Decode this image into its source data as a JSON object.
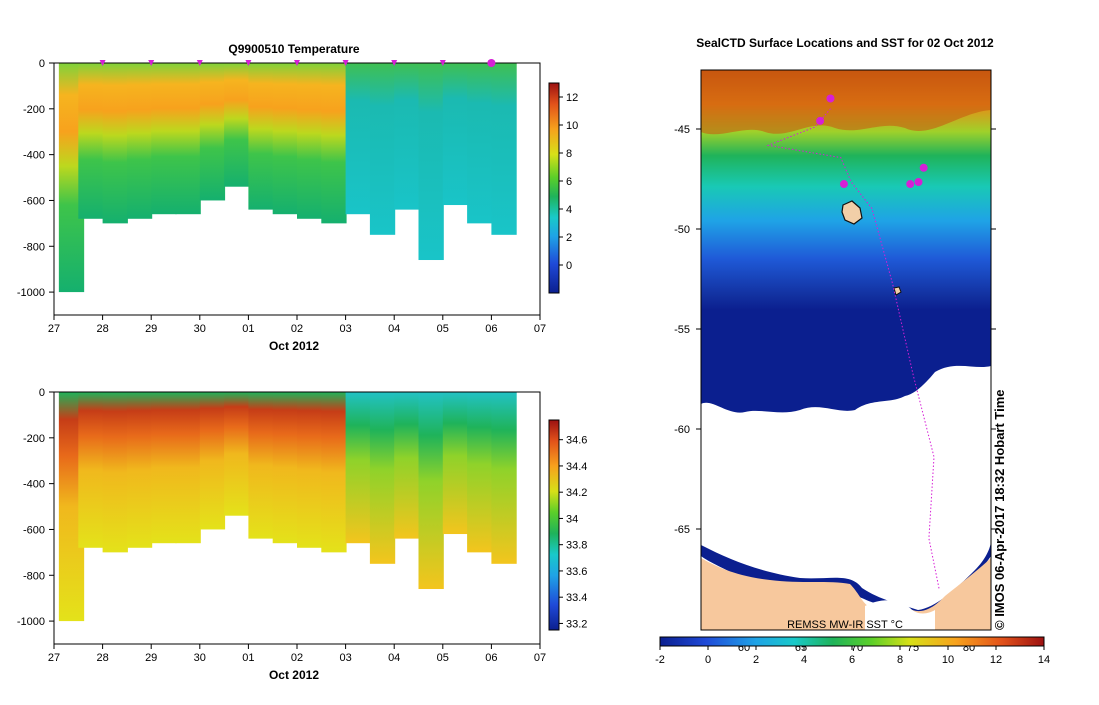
{
  "charts": {
    "temperature": {
      "title": "Q9900510  Temperature",
      "xlabel": "Oct 2012",
      "x_ticks": [
        "27",
        "28",
        "29",
        "30",
        "01",
        "02",
        "03",
        "04",
        "05",
        "06",
        "07"
      ],
      "y_ticks": [
        "0",
        "-200",
        "-400",
        "-600",
        "-800",
        "-1000"
      ],
      "colorbar_ticks": [
        "12",
        "10",
        "8",
        "6",
        "4",
        "2",
        "0"
      ]
    },
    "salinity": {
      "xlabel": "Oct 2012",
      "x_ticks": [
        "27",
        "28",
        "29",
        "30",
        "01",
        "02",
        "03",
        "04",
        "05",
        "06",
        "07"
      ],
      "y_ticks": [
        "0",
        "-200",
        "-400",
        "-600",
        "-800",
        "-1000"
      ],
      "colorbar_ticks": [
        "34.6",
        "34.4",
        "34.2",
        "34",
        "33.8",
        "33.6",
        "33.4",
        "33.2"
      ]
    },
    "map": {
      "title": "SealCTD Surface Locations and SST for 02 Oct 2012",
      "lat_ticks": [
        "-45",
        "-50",
        "-55",
        "-60",
        "-65"
      ],
      "lon_ticks": [
        "60",
        "65",
        "70",
        "75",
        "80"
      ],
      "source_label": "REMSS MW-IR SST °C",
      "timestamp": "© IMOS 06-Apr-2017 18:32 Hobart Time",
      "colorbar_ticks": [
        "-2",
        "0",
        "2",
        "4",
        "6",
        "8",
        "10",
        "12",
        "14"
      ]
    }
  },
  "chart_data": [
    {
      "type": "heatmap",
      "title": "Q9900510  Temperature",
      "xlabel": "Oct 2012",
      "ylabel": "",
      "x_range": [
        "27 Sep 2012",
        "07 Oct 2012"
      ],
      "ylim": [
        -1100,
        0
      ],
      "colorbar_range": [
        -2,
        13
      ],
      "colorbar_ticks": [
        12,
        10,
        8,
        6,
        4,
        2,
        0
      ],
      "surface_markers_days": [
        28,
        29,
        30,
        1,
        2,
        3,
        4,
        5,
        6
      ],
      "profiles": [
        {
          "day": 27.1,
          "max_depth": -1000,
          "thermocline_depth": -160,
          "surface_temp": 6,
          "subsurface_temp": 9
        },
        {
          "day": 27.5,
          "max_depth": -680,
          "thermocline_depth": -250,
          "surface_temp": 6,
          "subsurface_temp": 9
        },
        {
          "day": 28.0,
          "max_depth": -700,
          "thermocline_depth": -300,
          "surface_temp": 6,
          "subsurface_temp": 9
        },
        {
          "day": 28.5,
          "max_depth": -680,
          "thermocline_depth": -280,
          "surface_temp": 6,
          "subsurface_temp": 8
        },
        {
          "day": 29.0,
          "max_depth": -660,
          "thermocline_depth": -300,
          "surface_temp": 6,
          "subsurface_temp": 8
        },
        {
          "day": 29.5,
          "max_depth": -660,
          "thermocline_depth": -280,
          "surface_temp": 6,
          "subsurface_temp": 8
        },
        {
          "day": 30.0,
          "max_depth": -600,
          "thermocline_depth": -270,
          "surface_temp": 5,
          "subsurface_temp": 8
        },
        {
          "day": 30.5,
          "max_depth": -540,
          "thermocline_depth": -250,
          "surface_temp": 5,
          "subsurface_temp": 8
        },
        {
          "day": 31.0,
          "max_depth": -640,
          "thermocline_depth": -240,
          "surface_temp": 5,
          "subsurface_temp": 8
        },
        {
          "day": 31.5,
          "max_depth": -660,
          "thermocline_depth": -230,
          "surface_temp": 5,
          "subsurface_temp": 8
        },
        {
          "day": 32.0,
          "max_depth": -680,
          "thermocline_depth": -240,
          "surface_temp": 5,
          "subsurface_temp": 8
        },
        {
          "day": 32.5,
          "max_depth": -700,
          "thermocline_depth": -220,
          "surface_temp": 5,
          "subsurface_temp": 7
        },
        {
          "day": 33.0,
          "max_depth": -660,
          "thermocline_depth": -120,
          "surface_temp": 3,
          "subsurface_temp": 4
        },
        {
          "day": 33.5,
          "max_depth": -750,
          "thermocline_depth": -100,
          "surface_temp": 3,
          "subsurface_temp": 4
        },
        {
          "day": 34.0,
          "max_depth": -640,
          "thermocline_depth": -100,
          "surface_temp": 2,
          "subsurface_temp": 3
        },
        {
          "day": 34.5,
          "max_depth": -860,
          "thermocline_depth": -100,
          "surface_temp": 2,
          "subsurface_temp": 3
        },
        {
          "day": 35.0,
          "max_depth": -620,
          "thermocline_depth": -100,
          "surface_temp": 2,
          "subsurface_temp": 4
        },
        {
          "day": 35.5,
          "max_depth": -700,
          "thermocline_depth": -100,
          "surface_temp": 2,
          "subsurface_temp": 3
        },
        {
          "day": 36.0,
          "max_depth": -750,
          "thermocline_depth": -100,
          "surface_temp": 2,
          "subsurface_temp": 3
        }
      ]
    },
    {
      "type": "heatmap",
      "title": "",
      "xlabel": "Oct 2012",
      "ylabel": "",
      "x_range": [
        "27 Sep 2012",
        "07 Oct 2012"
      ],
      "ylim": [
        -1100,
        0
      ],
      "colorbar_range": [
        33.15,
        34.75
      ],
      "colorbar_ticks": [
        34.6,
        34.4,
        34.2,
        34.0,
        33.8,
        33.6,
        33.4,
        33.2
      ],
      "profiles": [
        {
          "day": 27.1,
          "max_depth": -1000,
          "surface_sal": 33.9,
          "core_sal": 34.6,
          "deep_sal": 34.3
        },
        {
          "day": 27.5,
          "max_depth": -680,
          "surface_sal": 33.9,
          "core_sal": 34.6,
          "deep_sal": 34.2
        },
        {
          "day": 28.0,
          "max_depth": -700,
          "surface_sal": 33.9,
          "core_sal": 34.6,
          "deep_sal": 34.2
        },
        {
          "day": 28.5,
          "max_depth": -680,
          "surface_sal": 33.9,
          "core_sal": 34.5,
          "deep_sal": 34.2
        },
        {
          "day": 29.0,
          "max_depth": -660,
          "surface_sal": 33.9,
          "core_sal": 34.5,
          "deep_sal": 34.2
        },
        {
          "day": 29.5,
          "max_depth": -660,
          "surface_sal": 33.9,
          "core_sal": 34.5,
          "deep_sal": 34.2
        },
        {
          "day": 30.0,
          "max_depth": -600,
          "surface_sal": 33.9,
          "core_sal": 34.5,
          "deep_sal": 34.2
        },
        {
          "day": 30.5,
          "max_depth": -540,
          "surface_sal": 33.9,
          "core_sal": 34.5,
          "deep_sal": 34.2
        },
        {
          "day": 31.0,
          "max_depth": -640,
          "surface_sal": 33.9,
          "core_sal": 34.5,
          "deep_sal": 34.2
        },
        {
          "day": 31.5,
          "max_depth": -660,
          "surface_sal": 33.9,
          "core_sal": 34.5,
          "deep_sal": 34.2
        },
        {
          "day": 32.0,
          "max_depth": -680,
          "surface_sal": 33.9,
          "core_sal": 34.5,
          "deep_sal": 34.2
        },
        {
          "day": 32.5,
          "max_depth": -700,
          "surface_sal": 33.9,
          "core_sal": 34.4,
          "deep_sal": 34.2
        },
        {
          "day": 33.0,
          "max_depth": -660,
          "surface_sal": 33.7,
          "core_sal": 34.0,
          "deep_sal": 34.2
        },
        {
          "day": 33.5,
          "max_depth": -750,
          "surface_sal": 33.7,
          "core_sal": 34.0,
          "deep_sal": 34.3
        },
        {
          "day": 34.0,
          "max_depth": -640,
          "surface_sal": 33.7,
          "core_sal": 33.9,
          "deep_sal": 34.2
        },
        {
          "day": 34.5,
          "max_depth": -860,
          "surface_sal": 33.7,
          "core_sal": 34.0,
          "deep_sal": 34.3
        },
        {
          "day": 35.0,
          "max_depth": -620,
          "surface_sal": 33.7,
          "core_sal": 33.9,
          "deep_sal": 34.2
        },
        {
          "day": 35.5,
          "max_depth": -700,
          "surface_sal": 33.7,
          "core_sal": 33.9,
          "deep_sal": 34.2
        },
        {
          "day": 36.0,
          "max_depth": -750,
          "surface_sal": 33.7,
          "core_sal": 33.9,
          "deep_sal": 34.2
        }
      ]
    },
    {
      "type": "heatmap",
      "title": "SealCTD Surface Locations and SST for 02 Oct 2012",
      "xlabel": "",
      "ylabel": "",
      "lon_range": [
        55,
        83
      ],
      "lat_range": [
        -69.5,
        -42
      ],
      "colorbar_range": [
        -2,
        14
      ],
      "colorbar_ticks": [
        -2,
        0,
        2,
        4,
        6,
        8,
        10,
        12,
        14
      ],
      "sst_bands": [
        {
          "lat_from": -42,
          "lat_to": -45.5,
          "sst": 11
        },
        {
          "lat_from": -45.5,
          "lat_to": -47.5,
          "sst": 7
        },
        {
          "lat_from": -47.5,
          "lat_to": -49.5,
          "sst": 5
        },
        {
          "lat_from": -49.5,
          "lat_to": -52,
          "sst": 3
        },
        {
          "lat_from": -52,
          "lat_to": -55.5,
          "sst": 1
        },
        {
          "lat_from": -55.5,
          "lat_to": -58.5,
          "sst": -1
        }
      ],
      "track": [
        {
          "lon": 67.5,
          "lat": -43.9
        },
        {
          "lon": 66.0,
          "lat": -44.8
        },
        {
          "lon": 61.5,
          "lat": -45.7
        },
        {
          "lon": 68.5,
          "lat": -46.3
        },
        {
          "lon": 69.5,
          "lat": -47.5
        },
        {
          "lon": 71.5,
          "lat": -48.8
        },
        {
          "lon": 73.5,
          "lat": -52.5
        },
        {
          "lon": 75.5,
          "lat": -57.0
        },
        {
          "lon": 77.5,
          "lat": -61.0
        },
        {
          "lon": 77.0,
          "lat": -65.0
        },
        {
          "lon": 78.0,
          "lat": -67.5
        }
      ],
      "surface_locations": [
        {
          "lon": 68.8,
          "lat": -47.6
        },
        {
          "lon": 75.2,
          "lat": -47.6
        },
        {
          "lon": 76.0,
          "lat": -47.5
        },
        {
          "lon": 76.5,
          "lat": -46.8
        },
        {
          "lon": 67.5,
          "lat": -43.4
        },
        {
          "lon": 66.5,
          "lat": -44.5
        }
      ]
    }
  ]
}
